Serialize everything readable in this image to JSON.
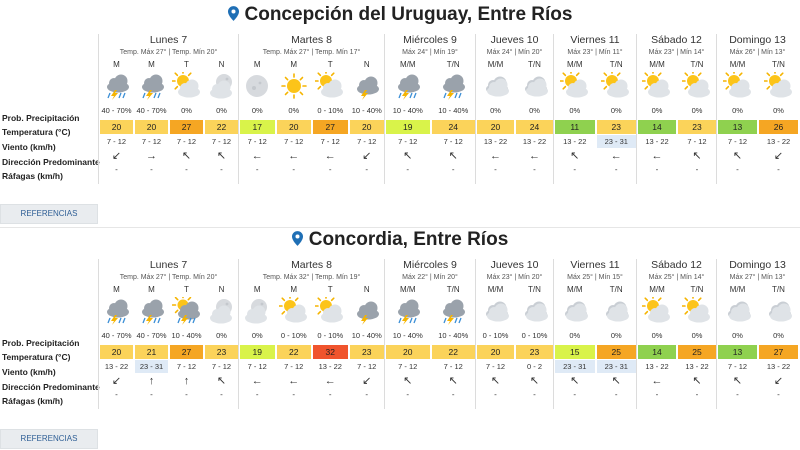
{
  "refs_label": "REFERENCIAS",
  "row_labels": {
    "prob": "Prob. Precipitación",
    "temp": "Temperatura (°C)",
    "wind": "Viento (km/h)",
    "dir": "Dirección Predominante",
    "gust": "Ráfagas (km/h)"
  },
  "colors": {
    "yellow": "#fbd35a",
    "lime": "#d9f34a",
    "green": "#8fd14f",
    "orange": "#f5a623",
    "red": "#f0542d",
    "wind_highlight": "#dfeaf6",
    "refs_text": "#2f5f96"
  },
  "cities": [
    {
      "title": "Concepción del Uruguay, Entre Ríos",
      "days": [
        {
          "name": "Lunes 7",
          "temps": "Temp. Máx 27° | Temp. Mín 20°",
          "slots": [
            {
              "period": "M",
              "icon": "storm-rain",
              "prob": "40 - 70%",
              "temp": "20",
              "tc": "yellow",
              "wind": "7 - 12",
              "wh": false,
              "dir": "↙",
              "gust": "-"
            },
            {
              "period": "M",
              "icon": "storm-rain",
              "prob": "40 - 70%",
              "temp": "20",
              "tc": "yellow",
              "wind": "7 - 12",
              "wh": false,
              "dir": "→",
              "gust": "-"
            },
            {
              "period": "T",
              "icon": "sun-cloud",
              "prob": "0%",
              "temp": "27",
              "tc": "orange",
              "wind": "7 - 12",
              "wh": false,
              "dir": "↖",
              "gust": "-"
            },
            {
              "period": "N",
              "icon": "moon-cloud",
              "prob": "0%",
              "temp": "22",
              "tc": "yellow",
              "wind": "7 - 12",
              "wh": false,
              "dir": "↖",
              "gust": "-"
            }
          ]
        },
        {
          "name": "Martes 8",
          "temps": "Temp. Máx 27° | Temp. Mín 17°",
          "slots": [
            {
              "period": "M",
              "icon": "moon",
              "prob": "0%",
              "temp": "17",
              "tc": "lime",
              "wind": "7 - 12",
              "wh": false,
              "dir": "←",
              "gust": "-"
            },
            {
              "period": "M",
              "icon": "sun",
              "prob": "0%",
              "temp": "20",
              "tc": "yellow",
              "wind": "7 - 12",
              "wh": false,
              "dir": "←",
              "gust": "-"
            },
            {
              "period": "T",
              "icon": "sun-cloud",
              "prob": "0 - 10%",
              "temp": "27",
              "tc": "orange",
              "wind": "7 - 12",
              "wh": false,
              "dir": "←",
              "gust": "-"
            },
            {
              "period": "N",
              "icon": "storm",
              "prob": "10 - 40%",
              "temp": "20",
              "tc": "yellow",
              "wind": "7 - 12",
              "wh": false,
              "dir": "↙",
              "gust": "-"
            }
          ]
        },
        {
          "name": "Miércoles 9",
          "temps": "Máx 24° | Mín 19°",
          "slots": [
            {
              "period": "M/M",
              "icon": "storm-rain",
              "prob": "10 - 40%",
              "temp": "19",
              "tc": "lime",
              "wind": "7 - 12",
              "wh": false,
              "dir": "↖",
              "gust": "-"
            },
            {
              "period": "T/N",
              "icon": "storm-rain",
              "prob": "10 - 40%",
              "temp": "24",
              "tc": "yellow",
              "wind": "7 - 12",
              "wh": false,
              "dir": "↖",
              "gust": "-"
            }
          ]
        },
        {
          "name": "Jueves 10",
          "temps": "Máx 24° | Mín 20°",
          "slots": [
            {
              "period": "M/M",
              "icon": "cloud",
              "prob": "0%",
              "temp": "20",
              "tc": "yellow",
              "wind": "13 - 22",
              "wh": false,
              "dir": "←",
              "gust": "-"
            },
            {
              "period": "T/N",
              "icon": "cloud",
              "prob": "0%",
              "temp": "24",
              "tc": "yellow",
              "wind": "13 - 22",
              "wh": false,
              "dir": "←",
              "gust": "-"
            }
          ]
        },
        {
          "name": "Viernes 11",
          "temps": "Máx 23° | Mín 11°",
          "slots": [
            {
              "period": "M/M",
              "icon": "sun-cloud",
              "prob": "0%",
              "temp": "11",
              "tc": "green",
              "wind": "13 - 22",
              "wh": false,
              "dir": "↖",
              "gust": "-"
            },
            {
              "period": "T/N",
              "icon": "sun-cloud",
              "prob": "0%",
              "temp": "23",
              "tc": "yellow",
              "wind": "23 - 31",
              "wh": true,
              "dir": "←",
              "gust": "-"
            }
          ]
        },
        {
          "name": "Sábado 12",
          "temps": "Máx 23° | Mín 14°",
          "slots": [
            {
              "period": "M/M",
              "icon": "sun-cloud",
              "prob": "0%",
              "temp": "14",
              "tc": "green",
              "wind": "13 - 22",
              "wh": false,
              "dir": "←",
              "gust": "-"
            },
            {
              "period": "T/N",
              "icon": "sun-cloud",
              "prob": "0%",
              "temp": "23",
              "tc": "yellow",
              "wind": "7 - 12",
              "wh": false,
              "dir": "↖",
              "gust": "-"
            }
          ]
        },
        {
          "name": "Domingo 13",
          "temps": "Máx 26° | Mín 13°",
          "slots": [
            {
              "period": "M/M",
              "icon": "sun-cloud",
              "prob": "0%",
              "temp": "13",
              "tc": "green",
              "wind": "7 - 12",
              "wh": false,
              "dir": "↖",
              "gust": "-"
            },
            {
              "period": "T/N",
              "icon": "sun-cloud",
              "prob": "0%",
              "temp": "26",
              "tc": "orange",
              "wind": "13 - 22",
              "wh": false,
              "dir": "↙",
              "gust": "-"
            }
          ]
        }
      ]
    },
    {
      "title": "Concordia, Entre Ríos",
      "days": [
        {
          "name": "Lunes 7",
          "temps": "Temp. Máx 27° | Temp. Mín 20°",
          "slots": [
            {
              "period": "M",
              "icon": "storm-rain",
              "prob": "40 - 70%",
              "temp": "20",
              "tc": "yellow",
              "wind": "13 - 22",
              "wh": false,
              "dir": "↙",
              "gust": "-"
            },
            {
              "period": "M",
              "icon": "storm-rain",
              "prob": "40 - 70%",
              "temp": "21",
              "tc": "yellow",
              "wind": "23 - 31",
              "wh": true,
              "dir": "↑",
              "gust": "-"
            },
            {
              "period": "T",
              "icon": "sun-storm",
              "prob": "10 - 40%",
              "temp": "27",
              "tc": "orange",
              "wind": "7 - 12",
              "wh": false,
              "dir": "↑",
              "gust": "-"
            },
            {
              "period": "N",
              "icon": "moon-cloud",
              "prob": "0%",
              "temp": "23",
              "tc": "yellow",
              "wind": "7 - 12",
              "wh": false,
              "dir": "↖",
              "gust": "-"
            }
          ]
        },
        {
          "name": "Martes 8",
          "temps": "Temp. Máx 32° | Temp. Mín 19°",
          "slots": [
            {
              "period": "M",
              "icon": "moon-cloud",
              "prob": "0%",
              "temp": "19",
              "tc": "lime",
              "wind": "7 - 12",
              "wh": false,
              "dir": "←",
              "gust": "-"
            },
            {
              "period": "M",
              "icon": "sun-cloud",
              "prob": "0 - 10%",
              "temp": "22",
              "tc": "yellow",
              "wind": "7 - 12",
              "wh": false,
              "dir": "←",
              "gust": "-"
            },
            {
              "period": "T",
              "icon": "sun-cloud",
              "prob": "0 - 10%",
              "temp": "32",
              "tc": "red",
              "wind": "13 - 22",
              "wh": false,
              "dir": "←",
              "gust": "-"
            },
            {
              "period": "N",
              "icon": "storm",
              "prob": "10 - 40%",
              "temp": "23",
              "tc": "yellow",
              "wind": "7 - 12",
              "wh": false,
              "dir": "↙",
              "gust": "-"
            }
          ]
        },
        {
          "name": "Miércoles 9",
          "temps": "Máx 22° | Mín 20°",
          "slots": [
            {
              "period": "M/M",
              "icon": "storm-rain",
              "prob": "10 - 40%",
              "temp": "20",
              "tc": "yellow",
              "wind": "7 - 12",
              "wh": false,
              "dir": "↖",
              "gust": "-"
            },
            {
              "period": "T/N",
              "icon": "storm-rain",
              "prob": "10 - 40%",
              "temp": "22",
              "tc": "yellow",
              "wind": "7 - 12",
              "wh": false,
              "dir": "↖",
              "gust": "-"
            }
          ]
        },
        {
          "name": "Jueves 10",
          "temps": "Máx 23° | Mín 20°",
          "slots": [
            {
              "period": "M/M",
              "icon": "cloud",
              "prob": "0 - 10%",
              "temp": "20",
              "tc": "yellow",
              "wind": "7 - 12",
              "wh": false,
              "dir": "↖",
              "gust": "-"
            },
            {
              "period": "T/N",
              "icon": "cloud",
              "prob": "0 - 10%",
              "temp": "23",
              "tc": "yellow",
              "wind": "0 - 2",
              "wh": false,
              "dir": "↖",
              "gust": "-"
            }
          ]
        },
        {
          "name": "Viernes 11",
          "temps": "Máx 25° | Mín 15°",
          "slots": [
            {
              "period": "M/M",
              "icon": "cloud",
              "prob": "0%",
              "temp": "15",
              "tc": "lime",
              "wind": "23 - 31",
              "wh": true,
              "dir": "↖",
              "gust": "-"
            },
            {
              "period": "T/N",
              "icon": "cloud",
              "prob": "0%",
              "temp": "25",
              "tc": "orange",
              "wind": "23 - 31",
              "wh": true,
              "dir": "↖",
              "gust": "-"
            }
          ]
        },
        {
          "name": "Sábado 12",
          "temps": "Máx 25° | Mín 14°",
          "slots": [
            {
              "period": "M/M",
              "icon": "sun-cloud",
              "prob": "0%",
              "temp": "14",
              "tc": "green",
              "wind": "13 - 22",
              "wh": false,
              "dir": "←",
              "gust": "-"
            },
            {
              "period": "T/N",
              "icon": "sun-cloud",
              "prob": "0%",
              "temp": "25",
              "tc": "orange",
              "wind": "13 - 22",
              "wh": false,
              "dir": "↖",
              "gust": "-"
            }
          ]
        },
        {
          "name": "Domingo 13",
          "temps": "Máx 27° | Mín 13°",
          "slots": [
            {
              "period": "M/M",
              "icon": "cloud",
              "prob": "0%",
              "temp": "13",
              "tc": "green",
              "wind": "7 - 12",
              "wh": false,
              "dir": "↖",
              "gust": "-"
            },
            {
              "period": "T/N",
              "icon": "cloud",
              "prob": "0%",
              "temp": "27",
              "tc": "orange",
              "wind": "13 - 22",
              "wh": false,
              "dir": "↙",
              "gust": "-"
            }
          ]
        }
      ]
    }
  ]
}
